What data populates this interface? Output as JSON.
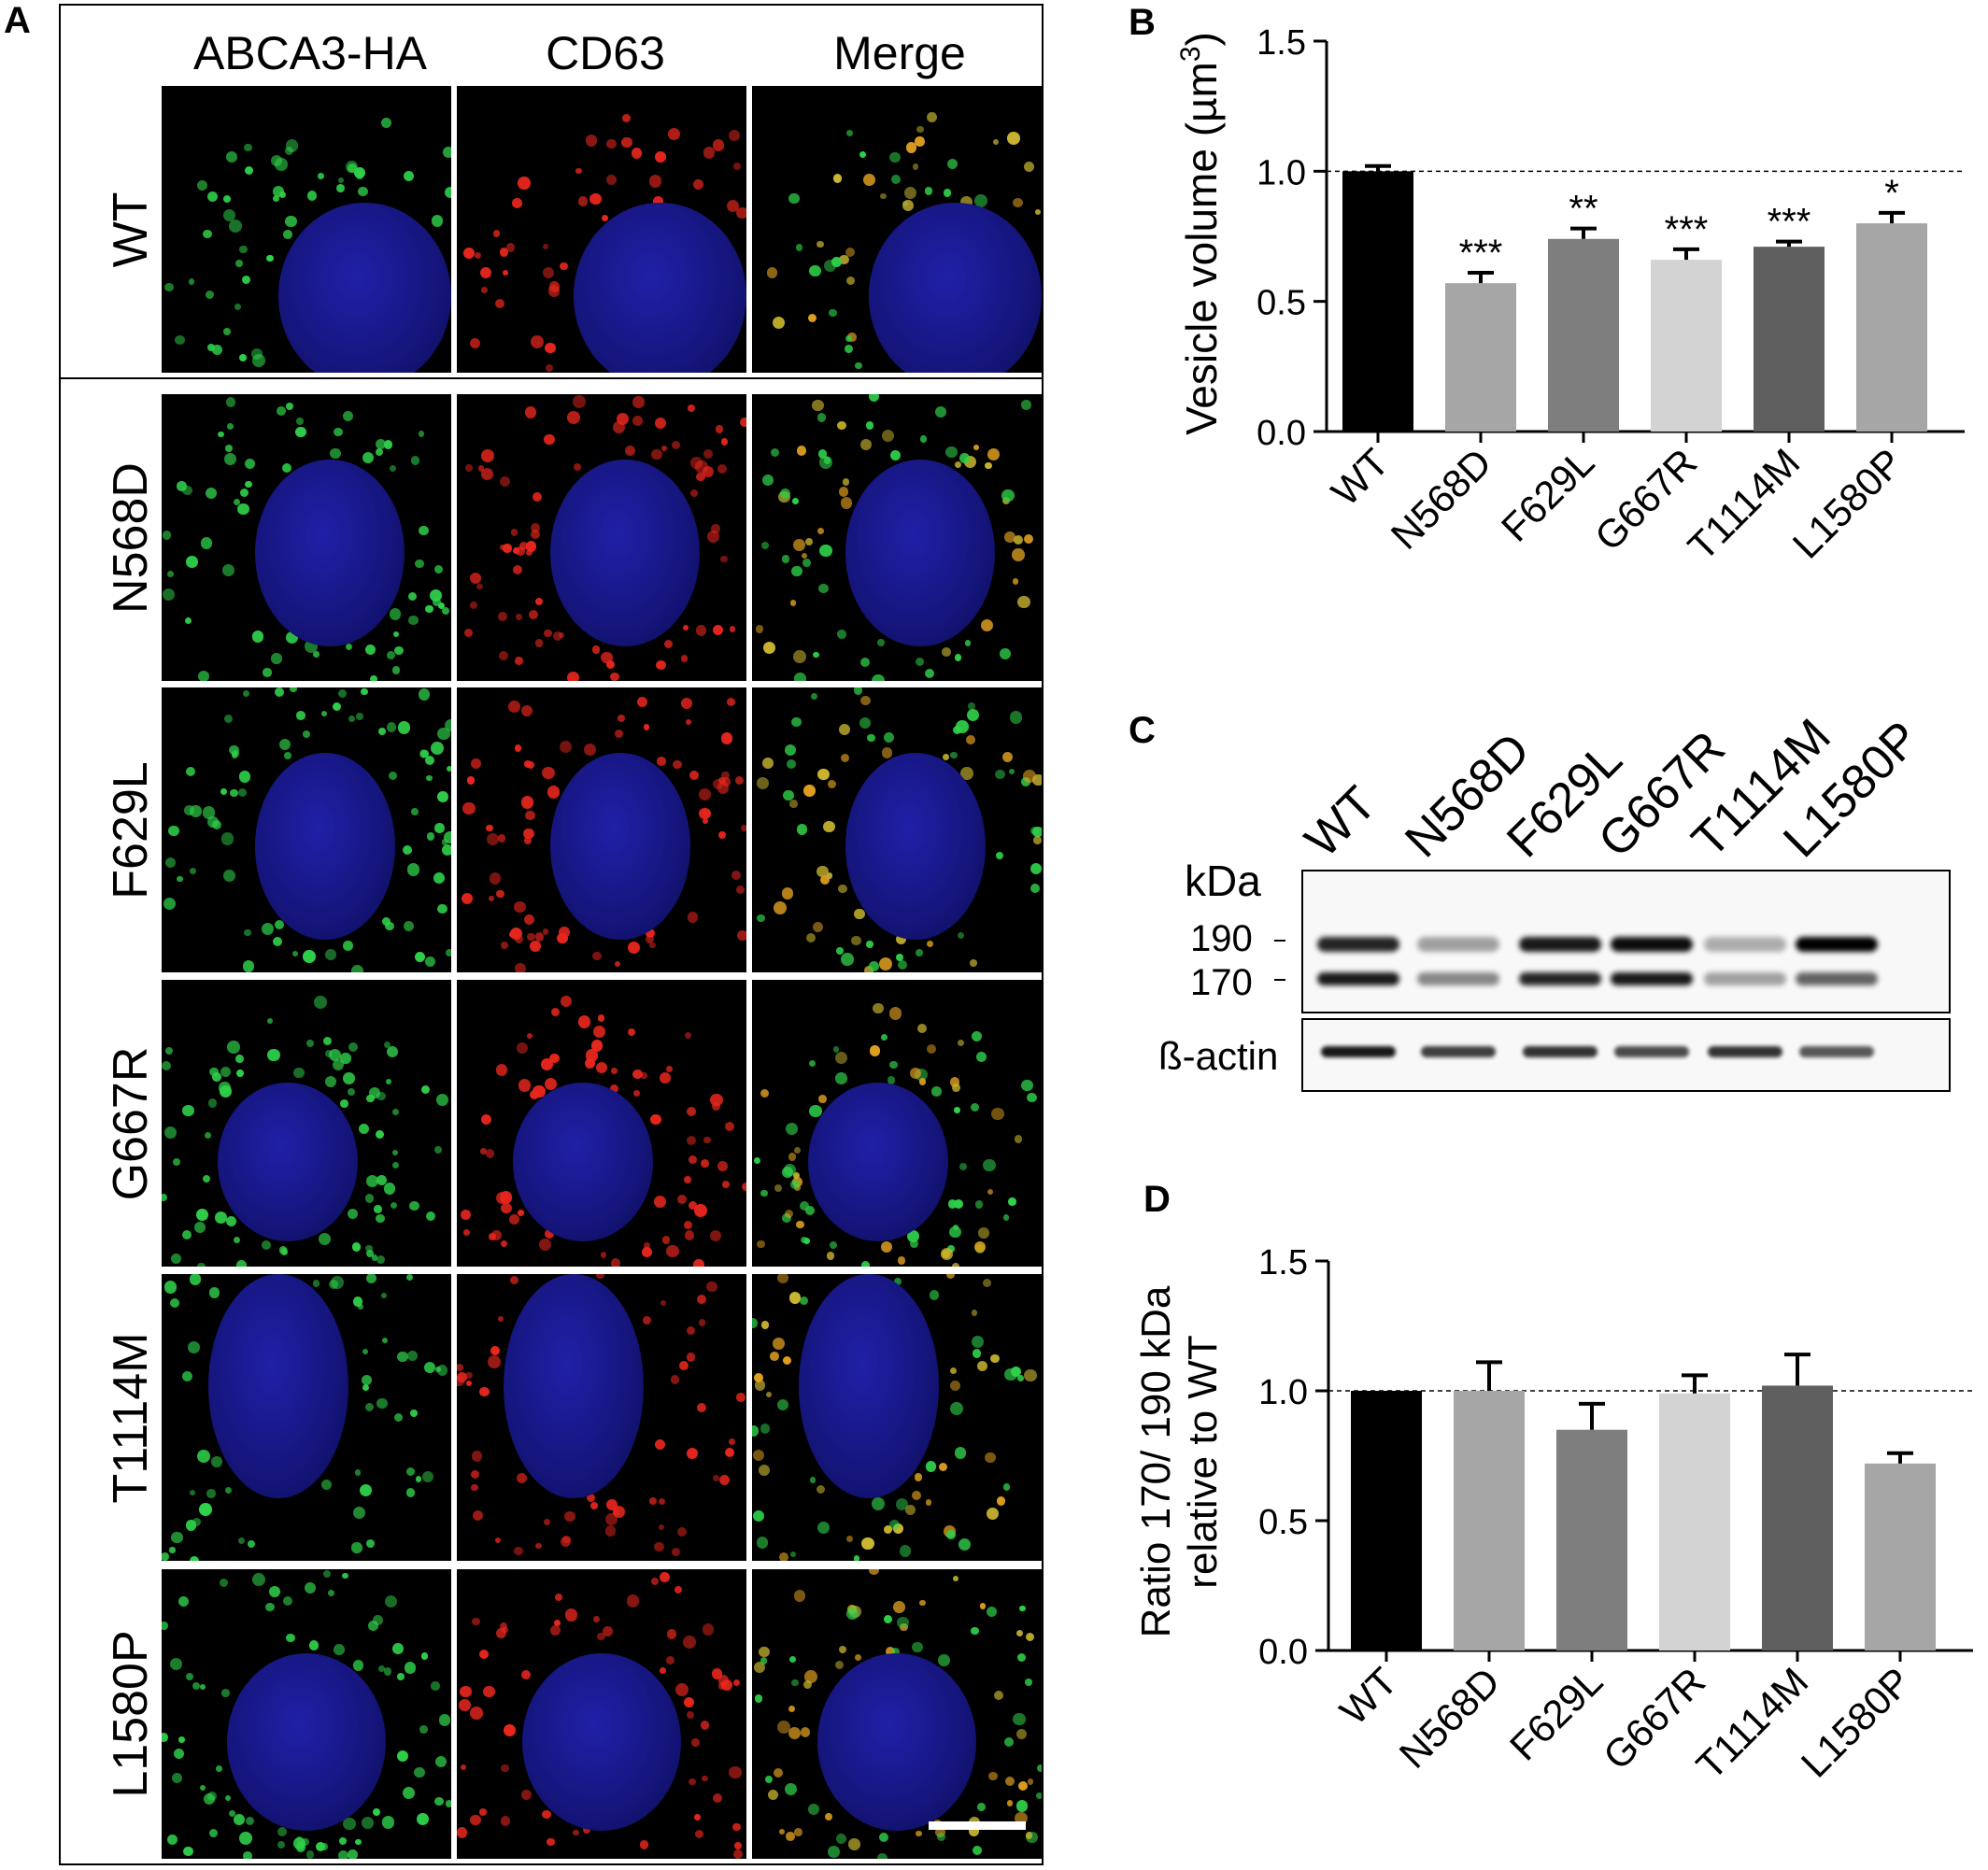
{
  "figure": {
    "panel_labels": [
      "A",
      "B",
      "C",
      "D"
    ],
    "panel_a": {
      "column_headers": [
        "ABCA3-HA",
        "CD63",
        "Merge"
      ],
      "row_labels": [
        "WT",
        "N568D",
        "F629L",
        "G667R",
        "T1114M",
        "L1580P"
      ],
      "channel_colors": {
        "abca3": "#2fd04a",
        "cd63": "#e8261e",
        "merge": "#c9b530",
        "nucleus": "#1a1a8c"
      }
    },
    "panel_c": {
      "lane_labels": [
        "WT",
        "N568D",
        "F629L",
        "G667R",
        "T1114M",
        "L1580P"
      ],
      "unit_label": "kDa",
      "markers": [
        "190",
        "170"
      ],
      "loading_control": "ß-actin",
      "band_190_intensity": [
        0.85,
        0.35,
        0.9,
        0.95,
        0.3,
        1.0
      ],
      "band_170_intensity": [
        0.9,
        0.45,
        0.85,
        0.9,
        0.35,
        0.6
      ],
      "actin_intensity": [
        0.9,
        0.75,
        0.8,
        0.7,
        0.8,
        0.65
      ]
    }
  },
  "chart_data": [
    {
      "type": "bar",
      "panel": "B",
      "title": "",
      "xlabel": "",
      "ylabel": "Vesicle volume (µm",
      "ylabel_superscript": "3",
      "ylabel_suffix": ")",
      "categories": [
        "WT",
        "N568D",
        "F629L",
        "G667R",
        "T1114M",
        "L1580P"
      ],
      "values": [
        1.0,
        0.57,
        0.74,
        0.66,
        0.71,
        0.8
      ],
      "errors": [
        0.02,
        0.04,
        0.04,
        0.04,
        0.02,
        0.04
      ],
      "significance": [
        "",
        "***",
        "**",
        "***",
        "***",
        "*"
      ],
      "bar_colors": [
        "#000000",
        "#a6a6a6",
        "#7e7e7e",
        "#d3d3d3",
        "#5f5f5f",
        "#a6a6a6"
      ],
      "ylim": [
        0,
        1.5
      ],
      "yticks": [
        "0.0",
        "0.5",
        "1.0",
        "1.5"
      ],
      "reference_line": 1.0
    },
    {
      "type": "bar",
      "panel": "D",
      "title": "",
      "xlabel": "",
      "ylabel_lines": [
        "Ratio 170/ 190 kDa",
        "relative to WT"
      ],
      "categories": [
        "WT",
        "N568D",
        "F629L",
        "G667R",
        "T1114M",
        "L1580P"
      ],
      "values": [
        1.0,
        1.0,
        0.85,
        0.99,
        1.02,
        0.72
      ],
      "errors": [
        0.0,
        0.11,
        0.1,
        0.07,
        0.12,
        0.04
      ],
      "bar_colors": [
        "#000000",
        "#a6a6a6",
        "#7e7e7e",
        "#d3d3d3",
        "#5f5f5f",
        "#a6a6a6"
      ],
      "ylim": [
        0,
        1.5
      ],
      "yticks": [
        "0.0",
        "0.5",
        "1.0",
        "1.5"
      ],
      "reference_line": 1.0
    }
  ]
}
